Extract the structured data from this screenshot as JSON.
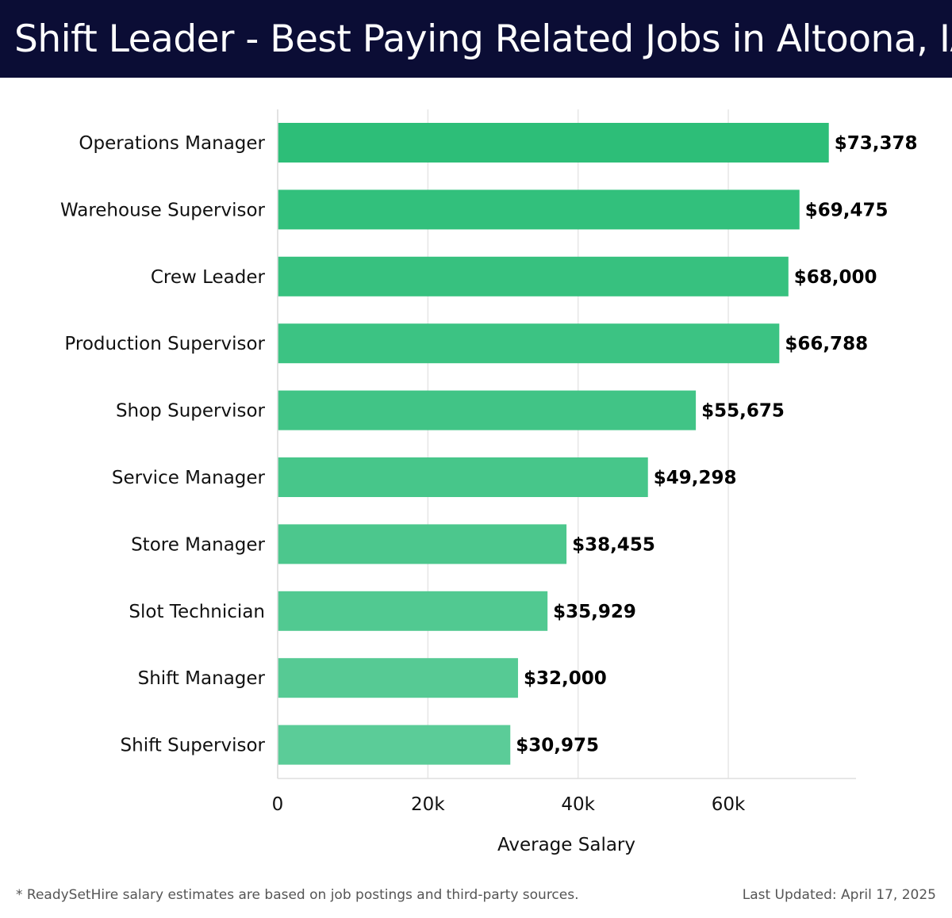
{
  "header": {
    "title": "Shift Leader - Best Paying Related Jobs in Altoona, IA"
  },
  "chart_data": {
    "type": "bar",
    "orientation": "horizontal",
    "categories": [
      "Operations Manager",
      "Warehouse Supervisor",
      "Crew Leader",
      "Production Supervisor",
      "Shop Supervisor",
      "Service Manager",
      "Store Manager",
      "Slot Technician",
      "Shift Manager",
      "Shift Supervisor"
    ],
    "values": [
      73378,
      69475,
      68000,
      66788,
      55675,
      49298,
      38455,
      35929,
      32000,
      30975
    ],
    "value_labels": [
      "$73,378",
      "$69,475",
      "$68,000",
      "$66,788",
      "$55,675",
      "$49,298",
      "$38,455",
      "$35,929",
      "$32,000",
      "$30,975"
    ],
    "xlabel": "Average Salary",
    "ylabel": "",
    "xlim": [
      0,
      77000
    ],
    "xticks": [
      0,
      20000,
      40000,
      60000
    ],
    "xtick_labels": [
      "0",
      "20k",
      "40k",
      "60k"
    ],
    "grid": "vertical",
    "bar_color_top": "#2dbe78",
    "bar_color_bottom": "#5bcc98"
  },
  "footer": {
    "note": "* ReadySetHire salary estimates are based on job postings and third-party sources.",
    "updated": "Last Updated: April 17, 2025"
  }
}
